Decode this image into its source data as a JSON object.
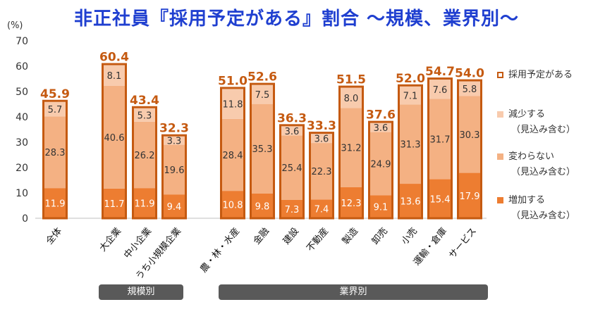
{
  "title": "非正社員『採用予定がある』割合 ～規模、業界別～",
  "colors": {
    "increase": "#ed7d31",
    "nochange": "#f4b183",
    "decrease": "#f8cbad",
    "label": "#c55a11",
    "outline": "#c55a11"
  },
  "legend": {
    "total": {
      "label": "採用予定がある"
    },
    "decrease": {
      "label": "減少する",
      "sub": "（見込み含む）"
    },
    "nochange": {
      "label": "変わらない",
      "sub": "（見込み含む）"
    },
    "increase": {
      "label": "増加する",
      "sub": "（見込み含む）"
    }
  },
  "groups": [
    {
      "label": "規模別"
    },
    {
      "label": "業界別"
    }
  ],
  "chart_data": {
    "type": "bar",
    "stacked": true,
    "ylabel": "(%)",
    "ylim": [
      0,
      70
    ],
    "yticks": [
      0,
      10,
      20,
      30,
      40,
      50,
      60,
      70
    ],
    "grid": false,
    "legend_position": "right",
    "categories": [
      "全体",
      "大企業",
      "中小企業",
      "うち小規模企業",
      "農・林・水産",
      "金融",
      "建設",
      "不動産",
      "製造",
      "卸売",
      "小売",
      "運輸・倉庫",
      "サービス"
    ],
    "series": [
      {
        "name": "増加する（見込み含む）",
        "values": [
          11.9,
          11.7,
          11.9,
          9.4,
          10.8,
          9.8,
          7.3,
          7.4,
          12.3,
          9.1,
          13.6,
          15.4,
          17.9
        ]
      },
      {
        "name": "変わらない（見込み含む）",
        "values": [
          28.3,
          40.6,
          26.2,
          19.6,
          28.4,
          35.3,
          25.4,
          22.3,
          31.2,
          24.9,
          31.3,
          31.7,
          30.3
        ]
      },
      {
        "name": "減少する（見込み含む）",
        "values": [
          5.7,
          8.1,
          5.3,
          3.3,
          11.8,
          7.5,
          3.6,
          3.6,
          8.0,
          3.6,
          7.1,
          7.6,
          5.8
        ]
      }
    ],
    "totals": {
      "name": "採用予定がある",
      "values": [
        45.9,
        60.4,
        43.4,
        32.3,
        51.0,
        52.6,
        36.3,
        33.3,
        51.5,
        37.6,
        52.0,
        54.7,
        54.0
      ]
    }
  }
}
